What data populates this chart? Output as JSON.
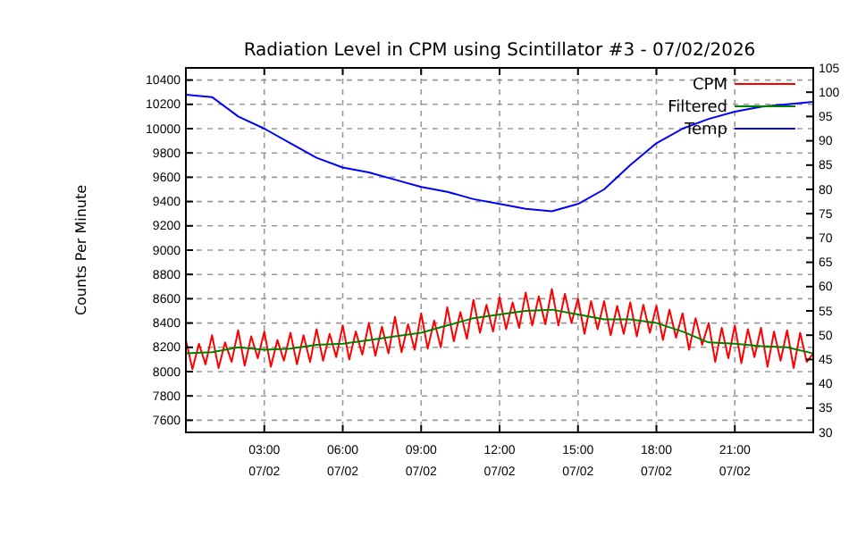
{
  "chart_data": {
    "type": "line",
    "title": "Radiation Level in CPM using Scintillator #3 - 07/02/2026",
    "ylabel": "Counts Per Minute",
    "xlim": [
      "2026-07-02T00:00",
      "2026-07-03T00:00"
    ],
    "ylim": [
      7500,
      10500
    ],
    "y2lim": [
      30,
      105
    ],
    "xticks": [
      {
        "value": "2026-07-02T03:00",
        "label": "03:00\n07/02"
      },
      {
        "value": "2026-07-02T06:00",
        "label": "06:00\n07/02"
      },
      {
        "value": "2026-07-02T09:00",
        "label": "09:00\n07/02"
      },
      {
        "value": "2026-07-02T12:00",
        "label": "12:00\n07/02"
      },
      {
        "value": "2026-07-02T15:00",
        "label": "15:00\n07/02"
      },
      {
        "value": "2026-07-02T18:00",
        "label": "18:00\n07/02"
      },
      {
        "value": "2026-07-02T21:00",
        "label": "21:00\n07/02"
      }
    ],
    "yticks": [
      7600,
      7800,
      8000,
      8200,
      8400,
      8600,
      8800,
      9000,
      9200,
      9400,
      9600,
      9800,
      10000,
      10200,
      10400
    ],
    "y2ticks": [
      30,
      35,
      40,
      45,
      50,
      55,
      60,
      65,
      70,
      75,
      80,
      85,
      90,
      95,
      100,
      105
    ],
    "grid": true,
    "legend": "top right",
    "line_style": "solid",
    "marker": "none",
    "series": [
      {
        "name": "CPM",
        "color": "#ff0000",
        "x": [
          "2026-07-02T00:00",
          "2026-07-02T00:15",
          "2026-07-02T00:30",
          "2026-07-02T00:45",
          "2026-07-02T01:00",
          "2026-07-02T01:15",
          "2026-07-02T01:30",
          "2026-07-02T01:45",
          "2026-07-02T02:00",
          "2026-07-02T02:15",
          "2026-07-02T02:30",
          "2026-07-02T02:45",
          "2026-07-02T03:00",
          "2026-07-02T03:15",
          "2026-07-02T03:30",
          "2026-07-02T03:45",
          "2026-07-02T04:00",
          "2026-07-02T04:15",
          "2026-07-02T04:30",
          "2026-07-02T04:45",
          "2026-07-02T05:00",
          "2026-07-02T05:15",
          "2026-07-02T05:30",
          "2026-07-02T05:45",
          "2026-07-02T06:00",
          "2026-07-02T06:15",
          "2026-07-02T06:30",
          "2026-07-02T06:45",
          "2026-07-02T07:00",
          "2026-07-02T07:15",
          "2026-07-02T07:30",
          "2026-07-02T07:45",
          "2026-07-02T08:00",
          "2026-07-02T08:15",
          "2026-07-02T08:30",
          "2026-07-02T08:45",
          "2026-07-02T09:00",
          "2026-07-02T09:15",
          "2026-07-02T09:30",
          "2026-07-02T09:45",
          "2026-07-02T10:00",
          "2026-07-02T10:15",
          "2026-07-02T10:30",
          "2026-07-02T10:45",
          "2026-07-02T11:00",
          "2026-07-02T11:15",
          "2026-07-02T11:30",
          "2026-07-02T11:45",
          "2026-07-02T12:00",
          "2026-07-02T12:15",
          "2026-07-02T12:30",
          "2026-07-02T12:45",
          "2026-07-02T13:00",
          "2026-07-02T13:15",
          "2026-07-02T13:30",
          "2026-07-02T13:45",
          "2026-07-02T14:00",
          "2026-07-02T14:15",
          "2026-07-02T14:30",
          "2026-07-02T14:45",
          "2026-07-02T15:00",
          "2026-07-02T15:15",
          "2026-07-02T15:30",
          "2026-07-02T15:45",
          "2026-07-02T16:00",
          "2026-07-02T16:15",
          "2026-07-02T16:30",
          "2026-07-02T16:45",
          "2026-07-02T17:00",
          "2026-07-02T17:15",
          "2026-07-02T17:30",
          "2026-07-02T17:45",
          "2026-07-02T18:00",
          "2026-07-02T18:15",
          "2026-07-02T18:30",
          "2026-07-02T18:45",
          "2026-07-02T19:00",
          "2026-07-02T19:15",
          "2026-07-02T19:30",
          "2026-07-02T19:45",
          "2026-07-02T20:00",
          "2026-07-02T20:15",
          "2026-07-02T20:30",
          "2026-07-02T20:45",
          "2026-07-02T21:00",
          "2026-07-02T21:15",
          "2026-07-02T21:30",
          "2026-07-02T21:45",
          "2026-07-02T22:00",
          "2026-07-02T22:15",
          "2026-07-02T22:30",
          "2026-07-02T22:45",
          "2026-07-02T23:00",
          "2026-07-02T23:15",
          "2026-07-02T23:30",
          "2026-07-02T23:45",
          "2026-07-03T00:00"
        ],
        "values": [
          8260,
          8020,
          8230,
          8060,
          8300,
          8030,
          8240,
          8080,
          8340,
          8050,
          8290,
          8110,
          8330,
          8040,
          8260,
          8090,
          8320,
          8060,
          8300,
          8080,
          8350,
          8090,
          8310,
          8120,
          8380,
          8100,
          8330,
          8140,
          8400,
          8130,
          8370,
          8150,
          8450,
          8160,
          8390,
          8180,
          8480,
          8190,
          8420,
          8200,
          8530,
          8250,
          8490,
          8270,
          8590,
          8320,
          8550,
          8330,
          8610,
          8350,
          8570,
          8360,
          8650,
          8380,
          8620,
          8390,
          8680,
          8380,
          8640,
          8400,
          8600,
          8310,
          8580,
          8350,
          8580,
          8300,
          8540,
          8310,
          8570,
          8290,
          8550,
          8320,
          8540,
          8260,
          8510,
          8280,
          8480,
          8180,
          8440,
          8220,
          8400,
          8080,
          8360,
          8110,
          8380,
          8070,
          8350,
          8120,
          8360,
          8040,
          8330,
          8090,
          8340,
          8030,
          8320,
          8080,
          8150
        ]
      },
      {
        "name": "Filtered",
        "color": "#008000",
        "x": [
          "2026-07-02T00:00",
          "2026-07-02T01:00",
          "2026-07-02T02:00",
          "2026-07-02T03:00",
          "2026-07-02T04:00",
          "2026-07-02T05:00",
          "2026-07-02T06:00",
          "2026-07-02T07:00",
          "2026-07-02T08:00",
          "2026-07-02T09:00",
          "2026-07-02T10:00",
          "2026-07-02T11:00",
          "2026-07-02T12:00",
          "2026-07-02T13:00",
          "2026-07-02T14:00",
          "2026-07-02T15:00",
          "2026-07-02T16:00",
          "2026-07-02T17:00",
          "2026-07-02T18:00",
          "2026-07-02T19:00",
          "2026-07-02T20:00",
          "2026-07-02T21:00",
          "2026-07-02T22:00",
          "2026-07-02T23:00",
          "2026-07-03T00:00"
        ],
        "values": [
          8150,
          8160,
          8200,
          8180,
          8190,
          8220,
          8230,
          8260,
          8290,
          8320,
          8380,
          8440,
          8470,
          8500,
          8510,
          8470,
          8430,
          8430,
          8400,
          8330,
          8240,
          8230,
          8210,
          8200,
          8150
        ]
      },
      {
        "name": "Temp",
        "color": "#0000ff",
        "axis": "y2",
        "x": [
          "2026-07-02T00:00",
          "2026-07-02T01:00",
          "2026-07-02T02:00",
          "2026-07-02T03:00",
          "2026-07-02T04:00",
          "2026-07-02T05:00",
          "2026-07-02T06:00",
          "2026-07-02T07:00",
          "2026-07-02T08:00",
          "2026-07-02T09:00",
          "2026-07-02T10:00",
          "2026-07-02T11:00",
          "2026-07-02T12:00",
          "2026-07-02T13:00",
          "2026-07-02T14:00",
          "2026-07-02T15:00",
          "2026-07-02T16:00",
          "2026-07-02T17:00",
          "2026-07-02T18:00",
          "2026-07-02T19:00",
          "2026-07-02T20:00",
          "2026-07-02T21:00",
          "2026-07-02T22:00",
          "2026-07-02T23:00",
          "2026-07-03T00:00"
        ],
        "values": [
          99.5,
          99,
          95,
          92.5,
          89.5,
          86.5,
          84.5,
          83.5,
          82,
          80.5,
          79.5,
          78,
          77,
          76,
          75.5,
          77,
          80,
          85,
          89.5,
          92.5,
          94.5,
          96,
          97,
          97.5,
          98
        ]
      }
    ]
  }
}
